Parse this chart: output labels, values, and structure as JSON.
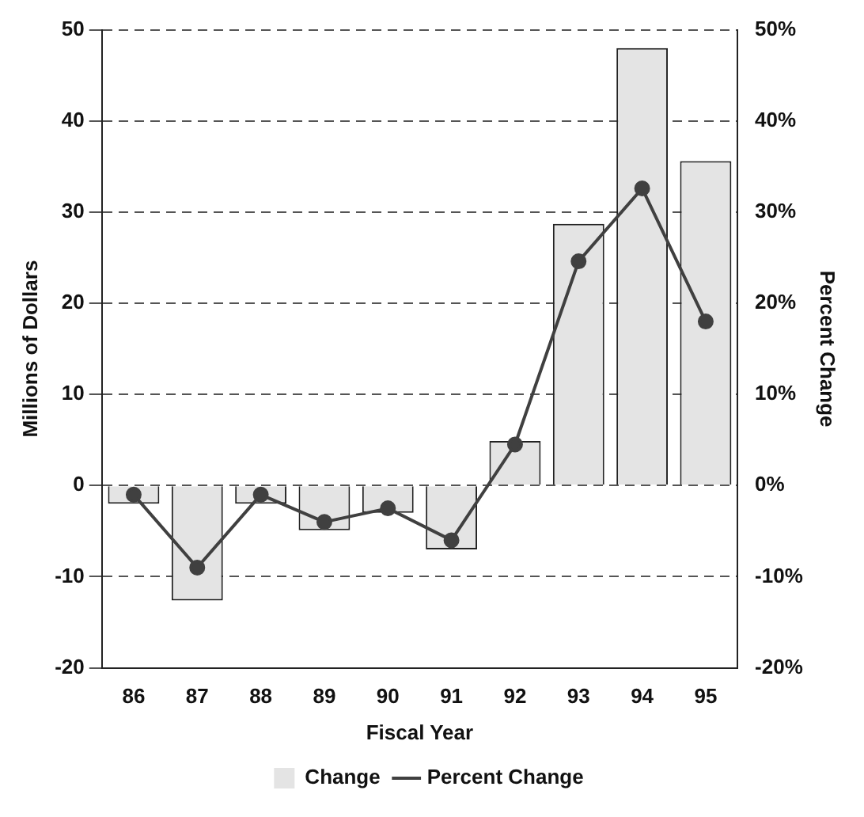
{
  "chart_data": {
    "type": "bar",
    "xlabel": "Fiscal Year",
    "ylabel": "Millions of Dollars",
    "y2label": "Percent Change",
    "categories": [
      "86",
      "87",
      "88",
      "89",
      "90",
      "91",
      "92",
      "93",
      "94",
      "95"
    ],
    "series": [
      {
        "name": "Change",
        "color": "#e4e4e4",
        "values": [
          -2,
          -12.6,
          -2,
          -4.9,
          -3,
          -7,
          4.9,
          28.7,
          48,
          35.6
        ]
      },
      {
        "name": "Percent Change",
        "type": "line",
        "axis": "y2",
        "color": "#404040",
        "marker": "circle",
        "values": [
          -1,
          -9,
          -1,
          -4,
          -2.5,
          -6,
          4.5,
          24.6,
          32.6,
          18
        ]
      }
    ],
    "ylim": [
      -20,
      50
    ],
    "yticks": [
      -20,
      -10,
      0,
      10,
      20,
      30,
      40,
      50
    ],
    "y2lim": [
      -20,
      50
    ],
    "y2ticks": [
      {
        "value": -20,
        "label": "-20%"
      },
      {
        "value": -10,
        "label": "-10%"
      },
      {
        "value": 0,
        "label": "0%"
      },
      {
        "value": 10,
        "label": "10%"
      },
      {
        "value": 20,
        "label": "20%"
      },
      {
        "value": 30,
        "label": "30%"
      },
      {
        "value": 40,
        "label": "40%"
      },
      {
        "value": 50,
        "label": "50%"
      }
    ],
    "grid": "y",
    "legend": "bottom"
  }
}
